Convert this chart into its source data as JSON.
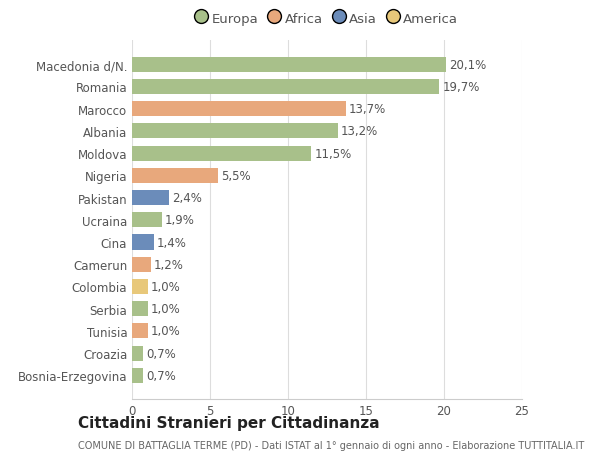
{
  "categories": [
    "Bosnia-Erzegovina",
    "Croazia",
    "Tunisia",
    "Serbia",
    "Colombia",
    "Camerun",
    "Cina",
    "Ucraina",
    "Pakistan",
    "Nigeria",
    "Moldova",
    "Albania",
    "Marocco",
    "Romania",
    "Macedonia d/N."
  ],
  "values": [
    0.7,
    0.7,
    1.0,
    1.0,
    1.0,
    1.2,
    1.4,
    1.9,
    2.4,
    5.5,
    11.5,
    13.2,
    13.7,
    19.7,
    20.1
  ],
  "labels": [
    "0,7%",
    "0,7%",
    "1,0%",
    "1,0%",
    "1,0%",
    "1,2%",
    "1,4%",
    "1,9%",
    "2,4%",
    "5,5%",
    "11,5%",
    "13,2%",
    "13,7%",
    "19,7%",
    "20,1%"
  ],
  "colors": [
    "#a8c08a",
    "#a8c08a",
    "#e8a87c",
    "#a8c08a",
    "#e8c87a",
    "#e8a87c",
    "#6b8cba",
    "#a8c08a",
    "#6b8cba",
    "#e8a87c",
    "#a8c08a",
    "#a8c08a",
    "#e8a87c",
    "#a8c08a",
    "#a8c08a"
  ],
  "legend_labels": [
    "Europa",
    "Africa",
    "Asia",
    "America"
  ],
  "legend_colors": [
    "#a8c08a",
    "#e8a87c",
    "#6b8cba",
    "#e8c87a"
  ],
  "title": "Cittadini Stranieri per Cittadinanza",
  "subtitle": "COMUNE DI BATTAGLIA TERME (PD) - Dati ISTAT al 1° gennaio di ogni anno - Elaborazione TUTTITALIA.IT",
  "xlim": [
    0,
    25
  ],
  "xticks": [
    0,
    5,
    10,
    15,
    20,
    25
  ],
  "background_color": "#ffffff",
  "bar_height": 0.68,
  "title_fontsize": 11,
  "subtitle_fontsize": 7,
  "label_fontsize": 8.5,
  "tick_fontsize": 8.5,
  "legend_fontsize": 9.5
}
